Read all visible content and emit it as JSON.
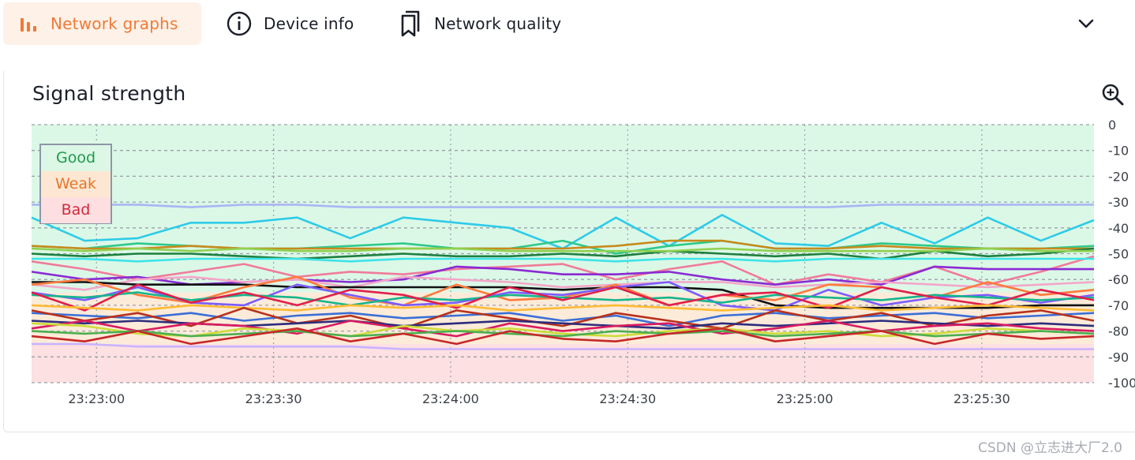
{
  "tabs": [
    {
      "label": "Network graphs",
      "icon": "bar-chart-icon",
      "active": true
    },
    {
      "label": "Device info",
      "icon": "info-circle-icon",
      "active": false
    },
    {
      "label": "Network quality",
      "icon": "bookmarks-icon",
      "active": false
    }
  ],
  "more_icon": "chevron-down-icon",
  "card": {
    "title": "Signal strength",
    "zoom_icon": "zoom-in-icon"
  },
  "legend": [
    {
      "label": "Good",
      "color": "#1f9a4c",
      "bg": "#dcf7e6"
    },
    {
      "label": "Weak",
      "color": "#e6762b",
      "bg": "#fde7d2"
    },
    {
      "label": "Bad",
      "color": "#d2283c",
      "bg": "#fddfe1"
    }
  ],
  "watermark": "CSDN @立志进大厂2.0",
  "colors": {
    "accent": "#f07a36",
    "good_zone": "#dbf8e7",
    "weak_zone": "#fdebd9",
    "bad_zone": "#fde0e1"
  },
  "chart_data": {
    "type": "line",
    "title": "Signal strength",
    "xlabel": "",
    "ylabel": "",
    "x_ticks": [
      "23:23:00",
      "23:23:30",
      "23:24:00",
      "23:24:30",
      "23:25:00",
      "23:25:30"
    ],
    "y_ticks": [
      0,
      -10,
      -20,
      -30,
      -40,
      -50,
      -60,
      -70,
      -80,
      -90,
      -100
    ],
    "ylim": [
      -100,
      0
    ],
    "x_range_seconds": [
      -11,
      169
    ],
    "grid": true,
    "legend_position": "top-left",
    "zones": [
      {
        "label": "Good",
        "from": -65,
        "to": 0
      },
      {
        "label": "Weak",
        "from": -85,
        "to": -65
      },
      {
        "label": "Bad",
        "from": -100,
        "to": -85
      }
    ],
    "series": [
      {
        "color": "#a9b5f4",
        "values": [
          -31,
          -31,
          -31,
          -32,
          -31,
          -31,
          -32,
          -32,
          -32,
          -32,
          -32,
          -32,
          -32,
          -32,
          -32,
          -32,
          -31,
          -31,
          -31,
          -31,
          -31
        ]
      },
      {
        "color": "#2ecbe8",
        "values": [
          -36,
          -45,
          -44,
          -38,
          -38,
          -36,
          -44,
          -36,
          -38,
          -40,
          -48,
          -36,
          -47,
          -35,
          -46,
          -47,
          -38,
          -46,
          -36,
          -45,
          -37
        ]
      },
      {
        "color": "#2ec98b",
        "values": [
          -47,
          -48,
          -46,
          -47,
          -48,
          -48,
          -47,
          -46,
          -48,
          -48,
          -45,
          -50,
          -47,
          -45,
          -48,
          -48,
          -46,
          -47,
          -48,
          -48,
          -47
        ]
      },
      {
        "color": "#c88a1c",
        "values": [
          -47,
          -48,
          -48,
          -47,
          -48,
          -48,
          -48,
          -48,
          -48,
          -48,
          -48,
          -47,
          -45,
          -45,
          -48,
          -48,
          -47,
          -48,
          -48,
          -48,
          -48
        ]
      },
      {
        "color": "#1d7f3f",
        "values": [
          -50,
          -51,
          -50,
          -50,
          -51,
          -52,
          -51,
          -50,
          -51,
          -51,
          -50,
          -51,
          -49,
          -50,
          -51,
          -50,
          -52,
          -49,
          -51,
          -50,
          -48
        ]
      },
      {
        "color": "#8fd14f",
        "values": [
          -48,
          -49,
          -48,
          -49,
          -48,
          -49,
          -49,
          -48,
          -48,
          -49,
          -49,
          -49,
          -49,
          -48,
          -49,
          -49,
          -49,
          -49,
          -48,
          -49,
          -49
        ]
      },
      {
        "color": "#f07b9a",
        "values": [
          -53,
          -56,
          -60,
          -57,
          -54,
          -59,
          -57,
          -58,
          -56,
          -55,
          -54,
          -60,
          -56,
          -53,
          -62,
          -58,
          -61,
          -55,
          -62,
          -57,
          -51
        ]
      },
      {
        "color": "#3de3e8",
        "values": [
          -52,
          -52,
          -53,
          -52,
          -52,
          -52,
          -53,
          -52,
          -52,
          -52,
          -52,
          -53,
          -52,
          -52,
          -53,
          -52,
          -52,
          -52,
          -52,
          -52,
          -52
        ]
      },
      {
        "color": "#8a2bd2",
        "values": [
          -57,
          -60,
          -59,
          -62,
          -61,
          -60,
          -61,
          -60,
          -55,
          -56,
          -58,
          -58,
          -57,
          -60,
          -62,
          -60,
          -62,
          -55,
          -56,
          -56,
          -56
        ]
      },
      {
        "color": "#f4a6c8",
        "values": [
          -62,
          -64,
          -60,
          -59,
          -61,
          -60,
          -63,
          -59,
          -60,
          -61,
          -63,
          -62,
          -61,
          -61,
          -63,
          -62,
          -61,
          -62,
          -63,
          -62,
          -61
        ]
      },
      {
        "color": "#111111",
        "values": [
          -61,
          -61,
          -62,
          -62,
          -62,
          -63,
          -63,
          -63,
          -63,
          -63,
          -64,
          -63,
          -63,
          -64,
          -70,
          -71,
          -71,
          -71,
          -71,
          -70,
          -70
        ]
      },
      {
        "color": "#ff7a3d",
        "values": [
          -62,
          -60,
          -66,
          -69,
          -63,
          -59,
          -67,
          -70,
          -62,
          -68,
          -67,
          -62,
          -70,
          -66,
          -68,
          -62,
          -63,
          -67,
          -61,
          -66,
          -64
        ]
      },
      {
        "color": "#7a5cff",
        "values": [
          -65,
          -68,
          -63,
          -69,
          -70,
          -62,
          -66,
          -70,
          -69,
          -65,
          -66,
          -63,
          -61,
          -70,
          -72,
          -64,
          -70,
          -67,
          -66,
          -69,
          -66
        ]
      },
      {
        "color": "#16b58c",
        "values": [
          -66,
          -67,
          -65,
          -68,
          -66,
          -67,
          -70,
          -67,
          -68,
          -66,
          -67,
          -68,
          -67,
          -69,
          -66,
          -67,
          -68,
          -66,
          -67,
          -68,
          -67
        ]
      },
      {
        "color": "#e01f4b",
        "values": [
          -65,
          -72,
          -62,
          -69,
          -65,
          -70,
          -64,
          -66,
          -71,
          -63,
          -68,
          -63,
          -70,
          -66,
          -65,
          -71,
          -63,
          -67,
          -70,
          -64,
          -68
        ]
      },
      {
        "color": "#ffbb33",
        "values": [
          -70,
          -71,
          -72,
          -70,
          -71,
          -72,
          -70,
          -71,
          -70,
          -72,
          -71,
          -70,
          -71,
          -72,
          -71,
          -70,
          -72,
          -71,
          -70,
          -71,
          -72
        ]
      },
      {
        "color": "#3b6fd8",
        "values": [
          -73,
          -74,
          -75,
          -73,
          -76,
          -74,
          -73,
          -75,
          -74,
          -73,
          -76,
          -74,
          -78,
          -74,
          -73,
          -75,
          -74,
          -73,
          -75,
          -74,
          -73
        ]
      },
      {
        "color": "#b7311b",
        "values": [
          -72,
          -76,
          -73,
          -78,
          -71,
          -77,
          -74,
          -79,
          -72,
          -75,
          -78,
          -73,
          -76,
          -79,
          -72,
          -76,
          -73,
          -78,
          -74,
          -72,
          -76
        ]
      },
      {
        "color": "#2d2d7d",
        "values": [
          -76,
          -77,
          -76,
          -77,
          -78,
          -77,
          -76,
          -78,
          -77,
          -76,
          -77,
          -78,
          -79,
          -77,
          -78,
          -77,
          -76,
          -77,
          -78,
          -77,
          -78
        ]
      },
      {
        "color": "#d81b60",
        "values": [
          -79,
          -76,
          -80,
          -77,
          -78,
          -81,
          -76,
          -79,
          -82,
          -77,
          -80,
          -78,
          -77,
          -81,
          -79,
          -76,
          -80,
          -78,
          -77,
          -79,
          -80
        ]
      },
      {
        "color": "#cddc39",
        "values": [
          -77,
          -78,
          -81,
          -82,
          -79,
          -80,
          -82,
          -78,
          -80,
          -79,
          -81,
          -82,
          -80,
          -79,
          -81,
          -80,
          -82,
          -81,
          -79,
          -80,
          -81
        ]
      },
      {
        "color": "#4caf50",
        "values": [
          -80,
          -81,
          -80,
          -82,
          -81,
          -80,
          -82,
          -81,
          -80,
          -81,
          -82,
          -80,
          -81,
          -80,
          -82,
          -81,
          -80,
          -82,
          -81,
          -80,
          -81
        ]
      },
      {
        "color": "#c62828",
        "values": [
          -82,
          -84,
          -80,
          -85,
          -82,
          -79,
          -84,
          -81,
          -85,
          -80,
          -83,
          -84,
          -81,
          -79,
          -84,
          -82,
          -80,
          -85,
          -81,
          -83,
          -82
        ]
      },
      {
        "color": "#c9b3ff",
        "values": [
          -85,
          -85,
          -86,
          -86,
          -86,
          -86,
          -86,
          -87,
          -87,
          -87,
          -87,
          -87,
          -87,
          -87,
          -87,
          -87,
          -87,
          -87,
          -87,
          -87,
          -87
        ]
      }
    ]
  }
}
